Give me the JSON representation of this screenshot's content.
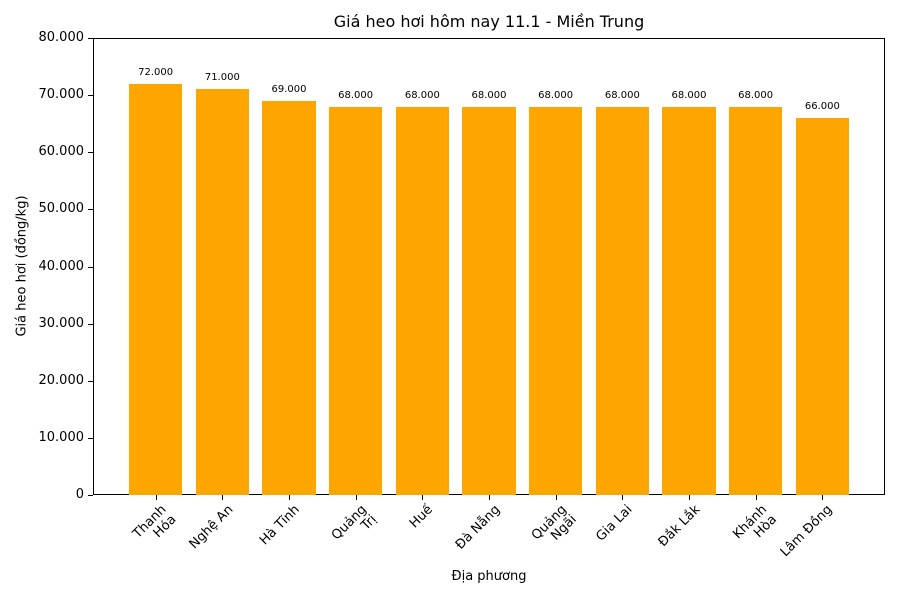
{
  "chart_data": {
    "type": "bar",
    "title": "Giá heo hơi hôm nay 11.1 - Miền Trung",
    "xlabel": "Địa phương",
    "ylabel": "Giá heo hơi (đồng/kg)",
    "categories": [
      "Thanh\nHóa",
      "Nghệ An",
      "Hà Tĩnh",
      "Quảng\nTrị",
      "Huế",
      "Đà Nẵng",
      "Quảng\nNgãi",
      "Gia Lai",
      "Đắk Lắk",
      "Khánh\nHòa",
      "Lâm Đồng"
    ],
    "values": [
      72000,
      71000,
      69000,
      68000,
      68000,
      68000,
      68000,
      68000,
      68000,
      68000,
      66000
    ],
    "value_labels": [
      "72.000",
      "71.000",
      "69.000",
      "68.000",
      "68.000",
      "68.000",
      "68.000",
      "68.000",
      "68.000",
      "68.000",
      "66.000"
    ],
    "ylim": [
      0,
      80000
    ],
    "yticks": [
      0,
      10000,
      20000,
      30000,
      40000,
      50000,
      60000,
      70000,
      80000
    ],
    "ytick_labels": [
      "0",
      "10.000",
      "20.000",
      "30.000",
      "40.000",
      "50.000",
      "60.000",
      "70.000",
      "80.000"
    ],
    "bar_color": "#ffa500",
    "grid": false,
    "legend": null
  }
}
